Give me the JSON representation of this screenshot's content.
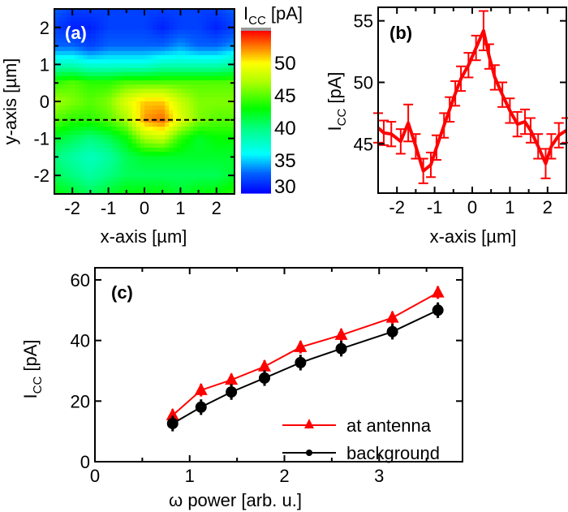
{
  "chart_data": [
    {
      "id": "a",
      "type": "heatmap",
      "panel_label": "(a)",
      "xlabel": "x-axis [µm]",
      "ylabel": "y-axis [µm]",
      "xlim": [
        -2.5,
        2.5
      ],
      "ylim": [
        -2.5,
        2.5
      ],
      "xticks": [
        -2,
        -1,
        0,
        1,
        2
      ],
      "yticks": [
        -2,
        -1,
        0,
        1,
        2
      ],
      "x": [
        -2.5,
        -2.0,
        -1.5,
        -1.0,
        -0.5,
        0.0,
        0.5,
        1.0,
        1.5,
        2.0,
        2.5
      ],
      "y": [
        2.5,
        2.0,
        1.5,
        1.0,
        0.5,
        0.0,
        -0.5,
        -1.0,
        -1.5,
        -2.0,
        -2.5
      ],
      "z": [
        [
          33,
          32,
          32,
          32,
          32,
          32,
          32,
          32,
          32,
          32,
          33
        ],
        [
          32,
          31,
          31,
          32,
          32,
          32,
          31,
          32,
          32,
          31,
          32
        ],
        [
          33,
          33,
          32,
          33,
          33,
          33,
          33,
          34,
          33,
          33,
          34
        ],
        [
          38,
          38,
          37,
          37,
          37,
          37,
          38,
          38,
          38,
          38,
          39
        ],
        [
          44,
          45,
          44,
          44,
          45,
          45,
          45,
          45,
          45,
          45,
          45
        ],
        [
          47,
          46,
          45,
          46,
          49,
          51,
          51,
          48,
          46,
          46,
          46
        ],
        [
          45,
          44,
          44,
          45,
          47,
          52,
          53,
          49,
          46,
          45,
          45
        ],
        [
          42,
          41,
          40,
          41,
          43,
          47,
          48,
          44,
          42,
          43,
          43
        ],
        [
          40,
          39,
          38,
          39,
          41,
          42,
          42,
          42,
          42,
          42,
          42
        ],
        [
          41,
          40,
          39,
          40,
          41,
          41,
          41,
          41,
          41,
          41,
          42
        ],
        [
          43,
          42,
          41,
          42,
          43,
          43,
          43,
          42,
          43,
          43,
          44
        ]
      ],
      "line_cut_y": -0.5,
      "colorbar": {
        "label_main": "I",
        "label_sub": "CC",
        "label_unit": " [pA]",
        "range": [
          30,
          55
        ],
        "ticks": [
          30,
          35,
          40,
          45,
          50
        ],
        "colormap": "jet"
      }
    },
    {
      "id": "b",
      "type": "line",
      "panel_label": "(b)",
      "xlabel": "x-axis [µm]",
      "ylabel_main": "I",
      "ylabel_sub": "CC",
      "ylabel_unit": " [pA]",
      "xlim": [
        -2.5,
        2.5
      ],
      "ylim": [
        41,
        56.1
      ],
      "xticks": [
        -2,
        -1,
        0,
        1,
        2
      ],
      "yticks": [
        45,
        50,
        55
      ],
      "color": "#ff0000",
      "x": [
        -2.5,
        -2.35,
        -2.15,
        -1.9,
        -1.7,
        -1.5,
        -1.3,
        -1.1,
        -0.95,
        -0.75,
        -0.6,
        -0.45,
        -0.3,
        -0.1,
        0.1,
        0.3,
        0.45,
        0.6,
        0.8,
        1.0,
        1.2,
        1.4,
        1.55,
        1.75,
        1.95,
        2.1,
        2.3,
        2.5
      ],
      "y": [
        46.3,
        45.9,
        45.8,
        45.2,
        46.7,
        44.8,
        42.8,
        43.3,
        44.7,
        46.5,
        47.8,
        49.1,
        50.3,
        51.4,
        52.8,
        54.2,
        52.1,
        50.4,
        49.0,
        47.7,
        46.6,
        46.8,
        46.1,
        44.8,
        43.4,
        44.8,
        45.7,
        46.1
      ],
      "err": [
        1.2,
        1.0,
        1.0,
        1.0,
        1.5,
        1.0,
        1.0,
        1.0,
        1.0,
        1.0,
        1.0,
        1.0,
        1.0,
        1.0,
        1.0,
        1.6,
        1.0,
        1.0,
        1.0,
        1.0,
        1.0,
        1.0,
        1.0,
        1.0,
        1.2,
        1.0,
        1.0,
        1.0
      ]
    },
    {
      "id": "c",
      "type": "line",
      "panel_label": "(c)",
      "xlabel": "ω power [arb. u.]",
      "ylabel_main": "I",
      "ylabel_sub": "CC",
      "ylabel_unit": " [pA]",
      "xlim": [
        0,
        3.88
      ],
      "ylim": [
        0,
        64
      ],
      "xticks": [
        0,
        1,
        2,
        3
      ],
      "yticks": [
        0,
        20,
        40,
        60
      ],
      "legend_position": "bottom-right",
      "x": [
        0.82,
        1.12,
        1.44,
        1.79,
        2.17,
        2.6,
        3.14,
        3.62
      ],
      "series": [
        {
          "name": "at antenna",
          "color": "#ff0000",
          "marker": "triangle",
          "values": [
            15.3,
            23.6,
            27.0,
            31.4,
            37.8,
            41.8,
            47.5,
            55.8
          ],
          "err": [
            1,
            1,
            1,
            1,
            1,
            1,
            1,
            1
          ]
        },
        {
          "name": "background",
          "color": "#000000",
          "marker": "circle",
          "values": [
            12.6,
            18.0,
            23.0,
            27.6,
            32.7,
            37.3,
            42.9,
            50.0
          ],
          "err": [
            1.5,
            1.5,
            1.5,
            1.5,
            1.5,
            1.5,
            1.5,
            1.5
          ]
        }
      ]
    }
  ]
}
